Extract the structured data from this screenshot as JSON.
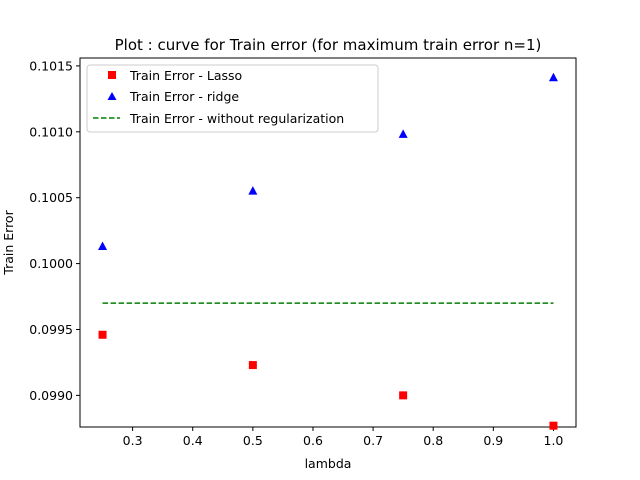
{
  "chart_data": {
    "type": "scatter",
    "title": "Plot : curve for Train error (for maximum train error n=1)",
    "xlabel": "lambda",
    "ylabel": "Train Error",
    "xlim": [
      0.2125,
      1.0375
    ],
    "ylim": [
      0.09876,
      0.10156
    ],
    "xticks": [
      0.3,
      0.4,
      0.5,
      0.6,
      0.7,
      0.8,
      0.9,
      1.0
    ],
    "xtick_labels": [
      "0.3",
      "0.4",
      "0.5",
      "0.6",
      "0.7",
      "0.8",
      "0.9",
      "1.0"
    ],
    "yticks": [
      0.099,
      0.0995,
      0.1,
      0.1005,
      0.101,
      0.1015
    ],
    "ytick_labels": [
      "0.0990",
      "0.0995",
      "0.1000",
      "0.1005",
      "0.1010",
      "0.1015"
    ],
    "grid": false,
    "legend_position": "upper-left",
    "series": [
      {
        "name": "Train Error - Lasso",
        "marker": "square",
        "color": "#ff0000",
        "x": [
          0.25,
          0.5,
          0.75,
          1.0
        ],
        "y": [
          0.09946,
          0.09923,
          0.099,
          0.09877
        ]
      },
      {
        "name": "Train Error - ridge",
        "marker": "triangle",
        "color": "#0000ff",
        "x": [
          0.25,
          0.5,
          0.75,
          1.0
        ],
        "y": [
          0.10013,
          0.10055,
          0.10098,
          0.10141
        ]
      },
      {
        "name": "Train Error - without regularization",
        "marker": "dashed-line",
        "color": "#008000",
        "x": [
          0.25,
          1.0
        ],
        "y": [
          0.0997,
          0.0997
        ]
      }
    ]
  }
}
